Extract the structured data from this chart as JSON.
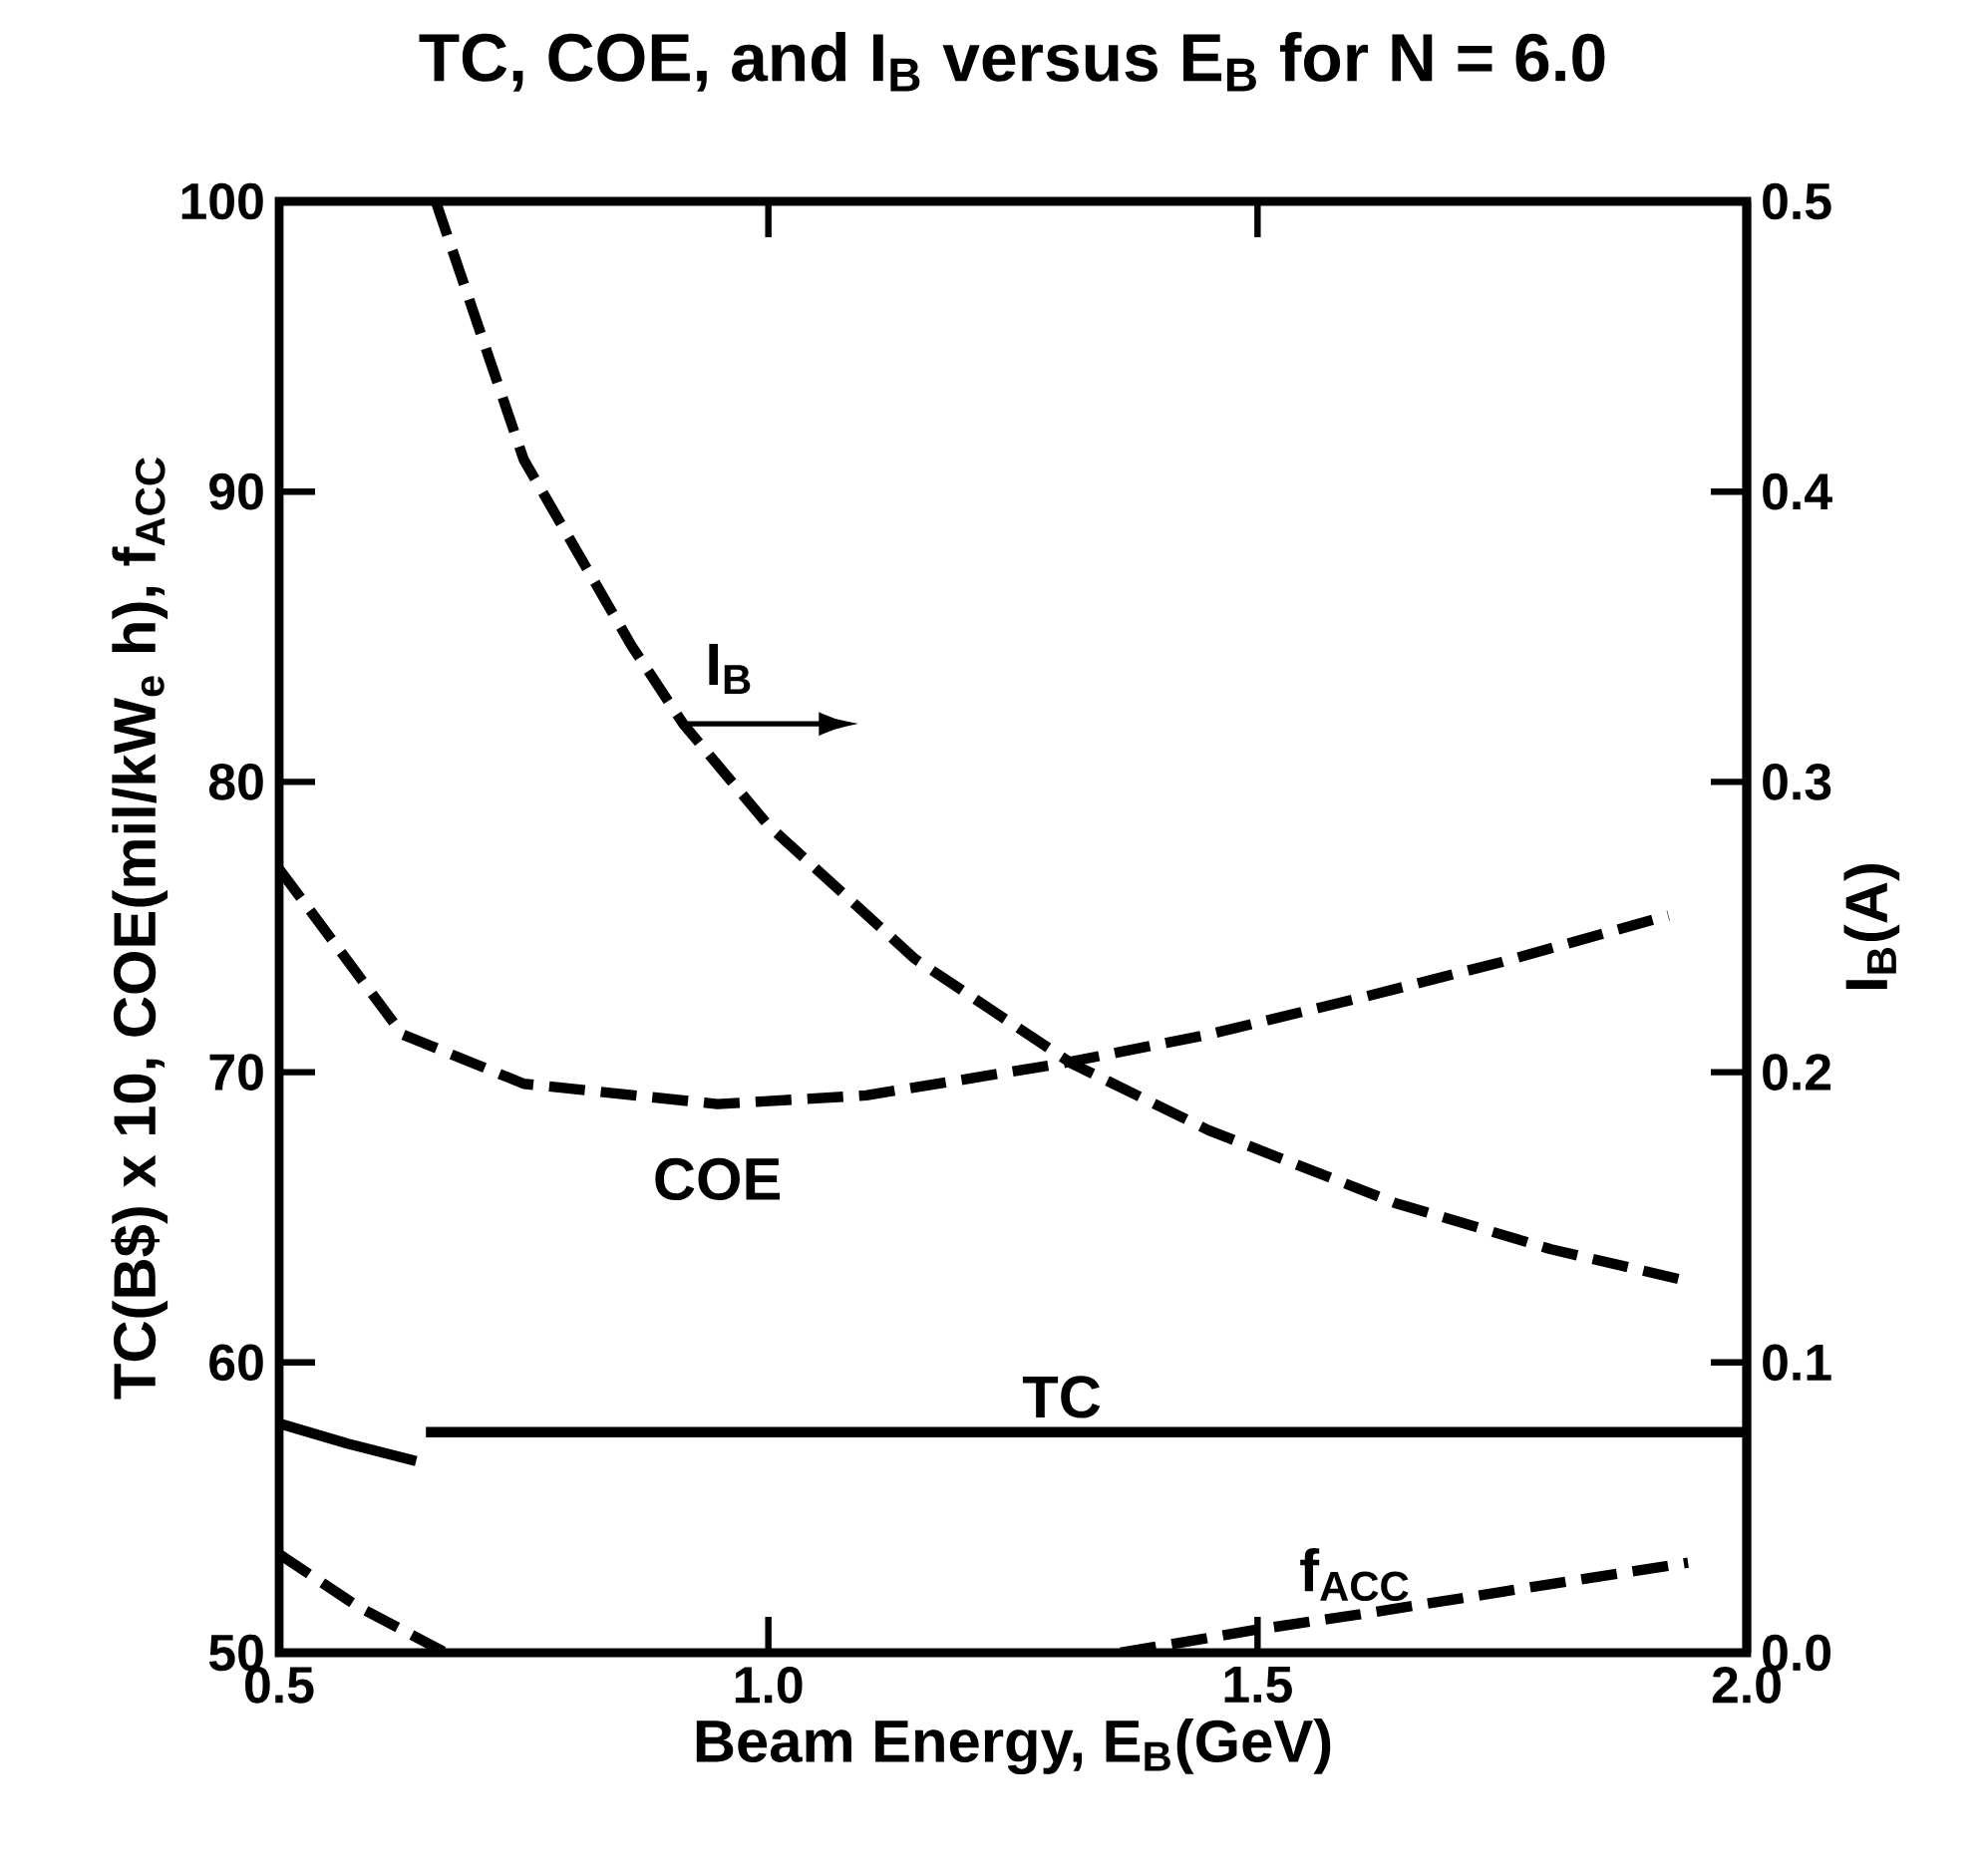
{
  "chart_data": {
    "type": "line",
    "title": "TC, COE, and I$_{B}$ versus E$_{B}$ for N = 6.0",
    "xlabel": "Beam Energy, E$_{B}$(GeV)",
    "ylabel": "TC(B$) x 10, COE(mil/kW$_{e}$ h), f$_{ACC}$",
    "y2label": "I$_{B}$(A)",
    "xlim": [
      0.5,
      2.0
    ],
    "xticks": [
      0.5,
      {
        "value": 1.0,
        "label": "1.0"
      },
      1.5,
      {
        "value": 2.0,
        "label": "2.0"
      }
    ],
    "ylim": [
      50,
      100
    ],
    "yticks": [
      50,
      60,
      70,
      80,
      90,
      100
    ],
    "y2lim": [
      0,
      0.5
    ],
    "y2ticks": [
      {
        "value": 0,
        "label": "0.0"
      },
      0.1,
      0.2,
      0.3,
      0.4,
      0.5
    ],
    "grid": false,
    "series": [
      {
        "color": "#000000",
        "line_style": "dashed",
        "x": [
          0.5,
          0.626,
          0.75,
          0.948,
          1.1,
          1.3,
          1.45,
          1.61,
          1.75,
          1.92
        ],
        "values": [
          77.0,
          71.3,
          69.6,
          68.9,
          69.2,
          70.3,
          71.3,
          72.6,
          73.8,
          75.4
        ]
      },
      {
        "color": "#000000",
        "line_style": "solid",
        "x": [
          0.5,
          0.57,
          0.64,
          0.645,
          0.65,
          2.0
        ],
        "values": [
          57.9,
          57.2,
          56.6,
          null,
          57.6,
          57.6
        ]
      },
      {
        "color": "#000000",
        "line_style": "dashed",
        "x": [
          0.5,
          0.58,
          0.67,
          0.68,
          1.36,
          1.5,
          1.6,
          1.75,
          1.94
        ],
        "values": [
          53.4,
          51.6,
          50,
          null,
          50,
          50.8,
          51.3,
          52.1,
          53.1
        ]
      },
      {
        "color": "#000000",
        "line_style": "dashed",
        "axis": "y2",
        "x": [
          0.66,
          0.75,
          0.86,
          0.913,
          1.0,
          1.15,
          1.31,
          1.45,
          1.64,
          1.8,
          1.94
        ],
        "values": [
          0.5,
          0.411,
          0.347,
          0.32,
          0.285,
          0.239,
          0.203,
          0.18,
          0.155,
          0.139,
          0.128
        ]
      }
    ],
    "annotations": [
      {
        "text": "I$_{B}$",
        "x": 0.913,
        "y": 82
      },
      {
        "text": "COE",
        "x": 0.948,
        "y": 68.9
      },
      {
        "text": "TC",
        "x": 1.3,
        "y": 57.6
      },
      {
        "text": "f$_{ACC}$",
        "x": 1.6,
        "y": 51.3
      }
    ]
  }
}
